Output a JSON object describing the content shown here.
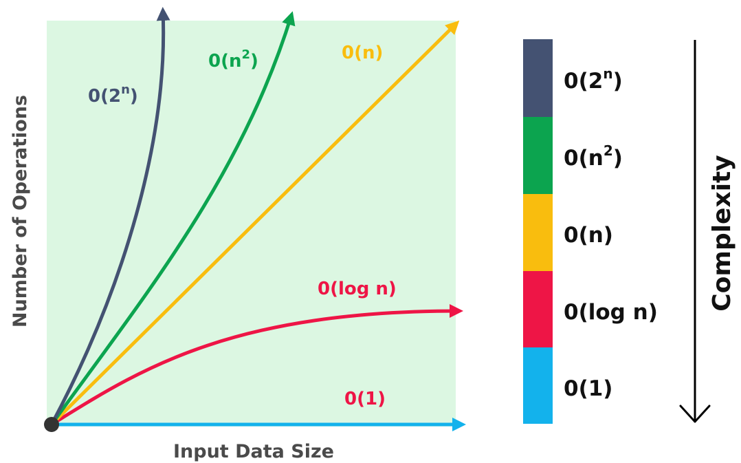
{
  "plot": {
    "y_axis_label": "Number of Operations",
    "x_axis_label": "Input Data Size",
    "background_color": "#dcf7e2"
  },
  "curves": [
    {
      "id": "exponential",
      "label": "0(2",
      "superscript": "n",
      "close": ")",
      "color": "#445272"
    },
    {
      "id": "quadratic",
      "label": "0(n",
      "superscript": "2",
      "close": ")",
      "color": "#0ca44f"
    },
    {
      "id": "linear",
      "label": "0(n)",
      "superscript": "",
      "close": "",
      "color": "#f9bd0e"
    },
    {
      "id": "logarithmic",
      "label": "0(log n)",
      "superscript": "",
      "close": "",
      "color": "#ee1546"
    },
    {
      "id": "constant",
      "label": "0(1)",
      "superscript": "",
      "close": "",
      "color": "#13b2ec",
      "label_color": "#ee1546"
    }
  ],
  "legend": [
    {
      "label": "0(2",
      "superscript": "n",
      "close": ")",
      "color": "#445272"
    },
    {
      "label": "0(n",
      "superscript": "2",
      "close": ")",
      "color": "#0ca44f"
    },
    {
      "label": "0(n)",
      "superscript": "",
      "close": "",
      "color": "#f9bd0e"
    },
    {
      "label": "0(log n)",
      "superscript": "",
      "close": "",
      "color": "#ee1546"
    },
    {
      "label": "0(1)",
      "superscript": "",
      "close": "",
      "color": "#13b2ec"
    }
  ],
  "complexity_label": "Complexity",
  "origin_color": "#333333",
  "arrow_color": "#000000"
}
